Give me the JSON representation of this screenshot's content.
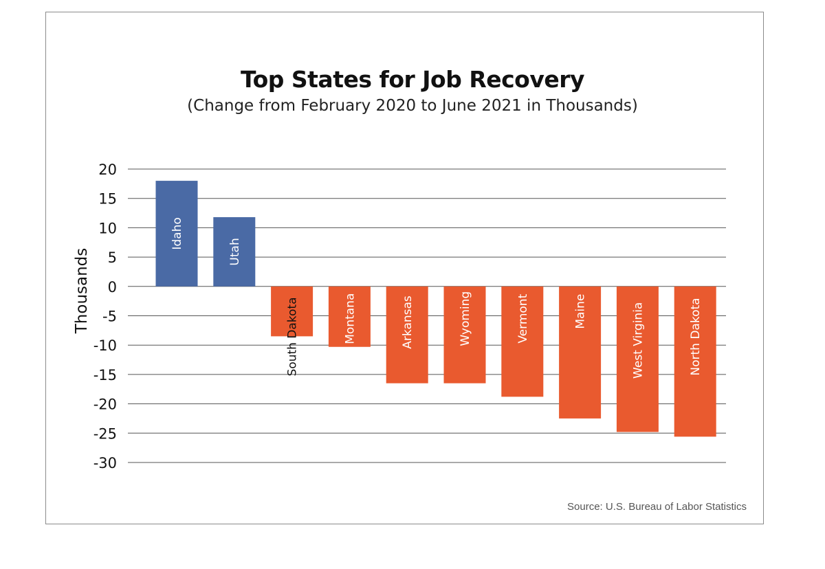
{
  "chart_data": {
    "type": "bar",
    "title": "Top States for Job Recovery",
    "subtitle": "(Change from February 2020 to June 2021 in Thousands)",
    "ylabel": "Thousands",
    "xlabel": "",
    "ylim": [
      -30,
      20
    ],
    "yticks": [
      20,
      15,
      10,
      5,
      0,
      -5,
      -10,
      -15,
      -20,
      -25,
      -30
    ],
    "grid": true,
    "categories": [
      "Idaho",
      "Utah",
      "South Dakota",
      "Montana",
      "Arkansas",
      "Wyoming",
      "Vermont",
      "Maine",
      "West Virginia",
      "North Dakota"
    ],
    "values": [
      18,
      11.8,
      -8.5,
      -10.3,
      -16.5,
      -16.5,
      -18.8,
      -22.5,
      -24.8,
      -25.6
    ],
    "colors": {
      "positive": "#4a6aa5",
      "negative": "#e95a2f",
      "grid": "#555555",
      "label_on_bar": "#ffffff",
      "label_off_bar": "#111111"
    },
    "source": "Source: U.S. Bureau of Labor Statistics"
  }
}
